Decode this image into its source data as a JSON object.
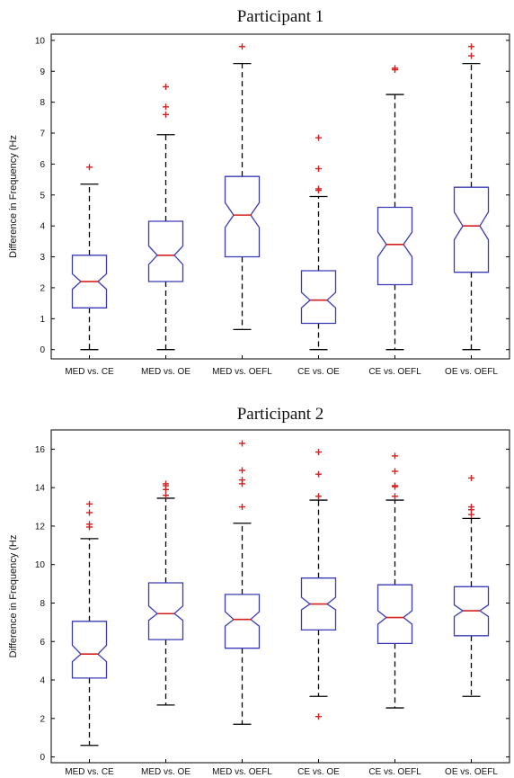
{
  "chart_data": [
    {
      "type": "box",
      "title": "Participant 1",
      "ylabel": "Difference in Frequency (Hz",
      "xlabel": "",
      "ylim": [
        -0.3,
        10.2
      ],
      "yticks": [
        0,
        1,
        2,
        3,
        4,
        5,
        6,
        7,
        8,
        9,
        10
      ],
      "categories": [
        "MED vs. CE",
        "MED vs. OE",
        "MED vs. OEFL",
        "CE vs. OE",
        "CE vs. OEFL",
        "OE vs. OEFL"
      ],
      "boxes": [
        {
          "min": 0.0,
          "q1": 1.35,
          "median": 2.2,
          "q3": 3.05,
          "max": 5.35,
          "notch": [
            1.95,
            2.45
          ],
          "outliers": [
            5.9
          ]
        },
        {
          "min": 0.0,
          "q1": 2.2,
          "median": 3.05,
          "q3": 4.15,
          "max": 6.95,
          "notch": [
            2.75,
            3.35
          ],
          "outliers": [
            7.6,
            7.85,
            8.5
          ]
        },
        {
          "min": 0.65,
          "q1": 3.0,
          "median": 4.35,
          "q3": 5.6,
          "max": 9.25,
          "notch": [
            3.95,
            4.75
          ],
          "outliers": [
            9.8
          ]
        },
        {
          "min": 0.0,
          "q1": 0.85,
          "median": 1.6,
          "q3": 2.55,
          "max": 4.95,
          "notch": [
            1.35,
            1.85
          ],
          "outliers": [
            5.15,
            5.2,
            5.85,
            6.85
          ]
        },
        {
          "min": 0.0,
          "q1": 2.1,
          "median": 3.4,
          "q3": 4.6,
          "max": 8.25,
          "notch": [
            3.0,
            3.8
          ],
          "outliers": [
            9.05,
            9.1
          ]
        },
        {
          "min": 0.0,
          "q1": 2.5,
          "median": 4.0,
          "q3": 5.25,
          "max": 9.25,
          "notch": [
            3.55,
            4.45
          ],
          "outliers": [
            9.5,
            9.8
          ]
        }
      ],
      "box_color": "#3b3bb5",
      "median_color": "#d42020",
      "outlier_color": "#d42020"
    },
    {
      "type": "box",
      "title": "Participant 2",
      "ylabel": "Difference in Frequency (Hz",
      "xlabel": "",
      "ylim": [
        -0.3,
        17
      ],
      "yticks": [
        0,
        2,
        4,
        6,
        8,
        10,
        12,
        14,
        16
      ],
      "categories": [
        "MED vs. CE",
        "MED vs. OE",
        "MED vs. OEFL",
        "CE vs. OE",
        "CE vs. OEFL",
        "OE vs. OEFL"
      ],
      "boxes": [
        {
          "min": 0.6,
          "q1": 4.1,
          "median": 5.35,
          "q3": 7.05,
          "max": 11.35,
          "notch": [
            4.95,
            5.8
          ],
          "outliers": [
            11.95,
            12.1,
            12.7,
            13.15
          ]
        },
        {
          "min": 2.7,
          "q1": 6.1,
          "median": 7.45,
          "q3": 9.05,
          "max": 13.45,
          "notch": [
            7.1,
            7.85
          ],
          "outliers": [
            13.6,
            13.9,
            14.1,
            14.2
          ]
        },
        {
          "min": 1.7,
          "q1": 5.65,
          "median": 7.15,
          "q3": 8.45,
          "max": 12.15,
          "notch": [
            6.8,
            7.55
          ],
          "outliers": [
            13.0,
            14.2,
            14.4,
            14.9,
            16.3
          ]
        },
        {
          "min": 3.15,
          "q1": 6.6,
          "median": 7.95,
          "q3": 9.3,
          "max": 13.35,
          "notch": [
            7.65,
            8.3
          ],
          "outliers": [
            2.1,
            13.55,
            14.7,
            15.85
          ]
        },
        {
          "min": 2.55,
          "q1": 5.9,
          "median": 7.25,
          "q3": 8.95,
          "max": 13.35,
          "notch": [
            6.9,
            7.6
          ],
          "outliers": [
            13.55,
            14.05,
            14.1,
            14.85,
            15.65
          ]
        },
        {
          "min": 3.15,
          "q1": 6.3,
          "median": 7.6,
          "q3": 8.85,
          "max": 12.4,
          "notch": [
            7.3,
            7.9
          ],
          "outliers": [
            12.6,
            12.85,
            13.0,
            14.5
          ]
        }
      ],
      "box_color": "#3b3bb5",
      "median_color": "#d42020",
      "outlier_color": "#d42020"
    }
  ]
}
